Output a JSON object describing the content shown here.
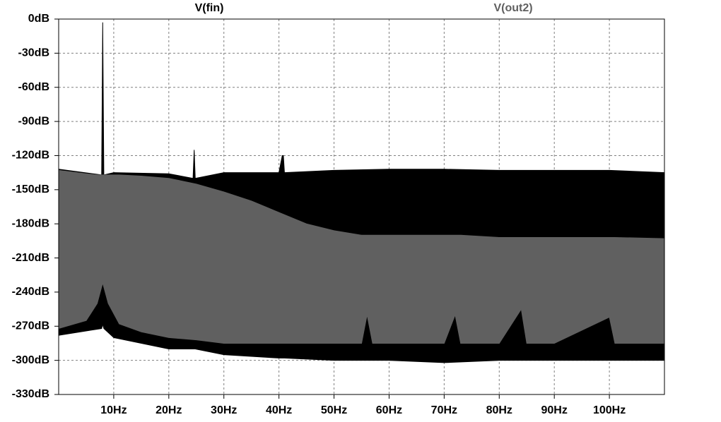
{
  "chart_data": {
    "type": "area-band",
    "xlim": [
      0,
      110
    ],
    "xticks": [
      {
        "value": 10,
        "label": "10Hz"
      },
      {
        "value": 20,
        "label": "20Hz"
      },
      {
        "value": 30,
        "label": "30Hz"
      },
      {
        "value": 40,
        "label": "40Hz"
      },
      {
        "value": 50,
        "label": "50Hz"
      },
      {
        "value": 60,
        "label": "60Hz"
      },
      {
        "value": 70,
        "label": "70Hz"
      },
      {
        "value": 80,
        "label": "80Hz"
      },
      {
        "value": 90,
        "label": "90Hz"
      },
      {
        "value": 100,
        "label": "100Hz"
      }
    ],
    "ylim": [
      -330,
      0
    ],
    "yticks": [
      {
        "value": 0,
        "label": "0dB"
      },
      {
        "value": -30,
        "label": "-30dB"
      },
      {
        "value": -60,
        "label": "-60dB"
      },
      {
        "value": -90,
        "label": "-90dB"
      },
      {
        "value": -120,
        "label": "-120dB"
      },
      {
        "value": -150,
        "label": "-150dB"
      },
      {
        "value": -180,
        "label": "-180dB"
      },
      {
        "value": -210,
        "label": "-210dB"
      },
      {
        "value": -240,
        "label": "-240dB"
      },
      {
        "value": -270,
        "label": "-270dB"
      },
      {
        "value": -300,
        "label": "-300dB"
      },
      {
        "value": -330,
        "label": "-330dB"
      }
    ],
    "grid": true,
    "series": [
      {
        "name": "V(fin)",
        "color": "#000000",
        "x": [
          0,
          7.8,
          8,
          8.2,
          10,
          20,
          24.4,
          24.6,
          24.8,
          30,
          40,
          40.6,
          40.8,
          41,
          50,
          60,
          70,
          80,
          90,
          100,
          110
        ],
        "high": [
          -132,
          -137,
          -3,
          -137,
          -135,
          -136,
          -140,
          -115,
          -140,
          -135,
          -135,
          -120,
          -120,
          -135,
          -133,
          -132,
          -132,
          -133,
          -133,
          -133,
          -135
        ],
        "low": [
          -278,
          -272,
          -268,
          -272,
          -280,
          -290,
          -290,
          -290,
          -290,
          -295,
          -298,
          -298,
          -298,
          -298,
          -300,
          -300,
          -302,
          -300,
          -300,
          -300,
          -300
        ]
      },
      {
        "name": "V(out2)",
        "color": "#606060",
        "x": [
          0,
          5,
          7,
          8,
          9,
          11,
          15,
          20,
          25,
          30,
          35,
          40,
          45,
          50,
          55,
          56,
          57,
          60,
          70,
          72,
          73,
          80,
          84,
          85,
          90,
          100,
          101,
          110
        ],
        "high": [
          -133,
          -136,
          -137,
          -137,
          -137,
          -137,
          -138,
          -140,
          -145,
          -152,
          -160,
          -170,
          -180,
          -186,
          -190,
          -190,
          -190,
          -190,
          -190,
          -190,
          -190,
          -192,
          -192,
          -192,
          -192,
          -192,
          -192,
          -193
        ],
        "low": [
          -272,
          -265,
          -250,
          -232,
          -250,
          -268,
          -275,
          -280,
          -282,
          -285,
          -285,
          -285,
          -285,
          -285,
          -285,
          -260,
          -285,
          -285,
          -285,
          -260,
          -285,
          -285,
          -255,
          -285,
          -285,
          -262,
          -285,
          -285
        ]
      }
    ]
  }
}
